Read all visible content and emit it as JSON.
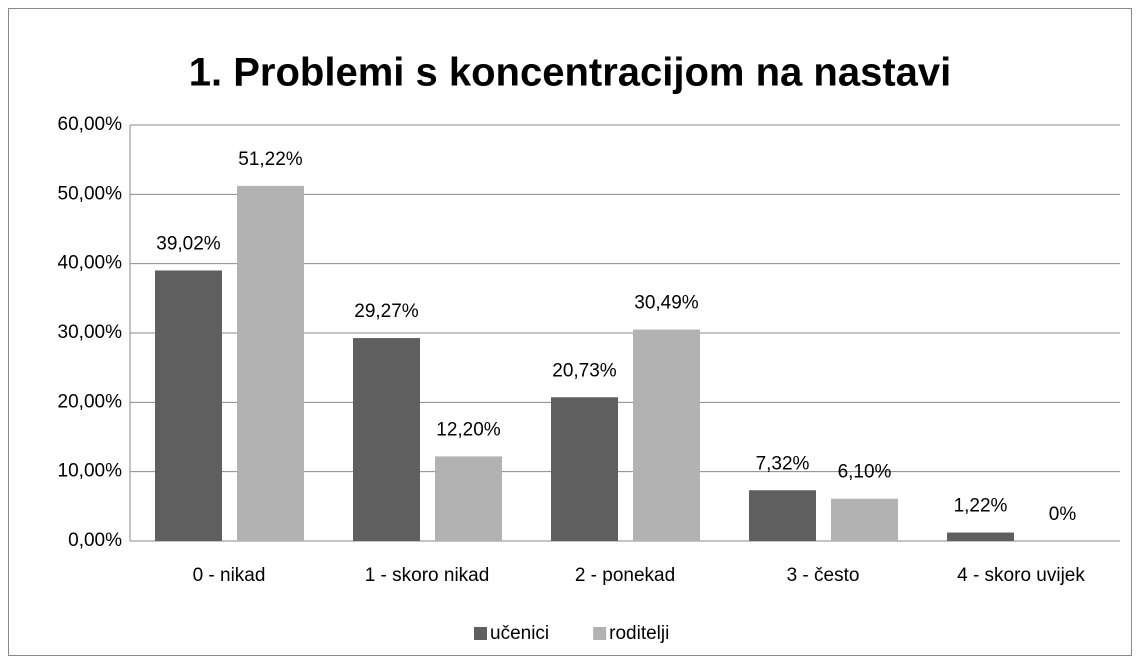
{
  "chart_data": {
    "type": "bar",
    "title": "1. Problemi s koncentracijom na nastavi",
    "categories": [
      "0 - nikad",
      "1 - skoro nikad",
      "2 - ponekad",
      "3 - često",
      "4 - skoro uvijek"
    ],
    "series": [
      {
        "name": "učenici",
        "color": "#5f5f5f",
        "values": [
          39.02,
          29.27,
          20.73,
          7.32,
          1.22
        ],
        "value_labels": [
          "39,02%",
          "29,27%",
          "20,73%",
          "7,32%",
          "1,22%"
        ]
      },
      {
        "name": "roditelji",
        "color": "#b2b2b2",
        "values": [
          51.22,
          12.2,
          30.49,
          6.1,
          0
        ],
        "value_labels": [
          "51,22%",
          "12,20%",
          "30,49%",
          "6,10%",
          "0%"
        ]
      }
    ],
    "ylim": [
      0,
      60
    ],
    "yticks": [
      {
        "value": 0,
        "label": "0,00%"
      },
      {
        "value": 10,
        "label": "10,00%"
      },
      {
        "value": 20,
        "label": "20,00%"
      },
      {
        "value": 30,
        "label": "30,00%"
      },
      {
        "value": 40,
        "label": "40,00%"
      },
      {
        "value": 50,
        "label": "50,00%"
      },
      {
        "value": 60,
        "label": "60,00%"
      }
    ],
    "grid": true,
    "legend": "bottom"
  }
}
